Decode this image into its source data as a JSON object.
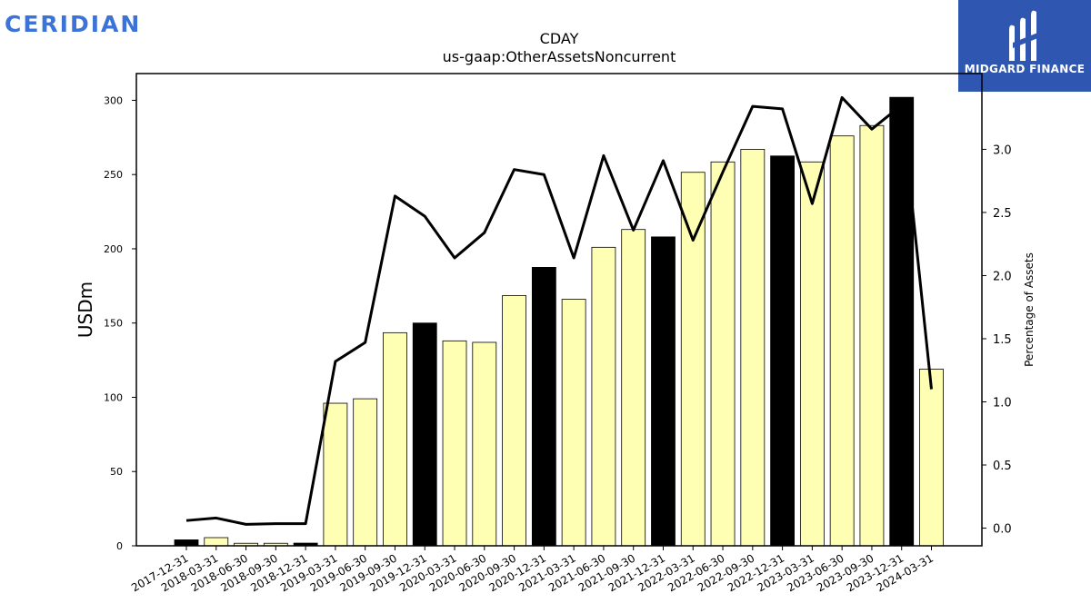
{
  "branding": {
    "left_logo_text": "CERIDIAN",
    "right_logo_text": "MIDGARD FINANCE",
    "left_logo_color": "#3b73d9",
    "right_logo_bg": "#2f57b1"
  },
  "chart_data": {
    "type": "bar",
    "title": "CDAY",
    "subtitle": "us-gaap:OtherAssetsNoncurrent",
    "ylabel": "USDm",
    "y2label": "Percentage of Assets",
    "ylim": [
      0,
      318
    ],
    "y2lim": [
      -0.14,
      3.6
    ],
    "yticks": [
      0,
      50,
      100,
      150,
      200,
      250,
      300
    ],
    "y2ticks": [
      "0.0",
      "0.5",
      "1.0",
      "1.5",
      "2.0",
      "2.5",
      "3.0"
    ],
    "categories": [
      "2017-12-31",
      "2018-03-31",
      "2018-06-30",
      "2018-09-30",
      "2018-12-31",
      "2019-03-31",
      "2019-06-30",
      "2019-09-30",
      "2019-12-31",
      "2020-03-31",
      "2020-06-30",
      "2020-09-30",
      "2020-12-31",
      "2021-03-31",
      "2021-06-30",
      "2021-09-30",
      "2021-12-31",
      "2022-03-31",
      "2022-06-30",
      "2022-09-30",
      "2022-12-31",
      "2023-03-31",
      "2023-06-30",
      "2023-09-30",
      "2023-12-31",
      "2024-03-31"
    ],
    "series": [
      {
        "type": "bar",
        "values": [
          4.0,
          5.5,
          1.7,
          1.7,
          1.8,
          96,
          99,
          143.5,
          150,
          138,
          137,
          168.5,
          187.5,
          166,
          201,
          213,
          208,
          251.5,
          258.5,
          267,
          262.5,
          258.5,
          276,
          283,
          302,
          119
        ],
        "colors": [
          "#000000",
          "#ffffb3",
          "#ffffb3",
          "#ffffb3",
          "#000000",
          "#ffffb3",
          "#ffffb3",
          "#ffffb3",
          "#000000",
          "#ffffb3",
          "#ffffb3",
          "#ffffb3",
          "#000000",
          "#ffffb3",
          "#ffffb3",
          "#ffffb3",
          "#000000",
          "#ffffb3",
          "#ffffb3",
          "#ffffb3",
          "#000000",
          "#ffffb3",
          "#ffffb3",
          "#ffffb3",
          "#000000",
          "#ffffb3"
        ]
      },
      {
        "type": "line",
        "axis": "right",
        "values": [
          0.06,
          0.08,
          0.03,
          0.035,
          0.035,
          1.32,
          1.47,
          2.63,
          2.47,
          2.14,
          2.34,
          2.84,
          2.8,
          2.14,
          2.95,
          2.36,
          2.91,
          2.28,
          2.82,
          3.34,
          3.32,
          2.57,
          3.41,
          3.16,
          3.35,
          1.1
        ],
        "color": "#000000"
      }
    ],
    "grid": false
  }
}
